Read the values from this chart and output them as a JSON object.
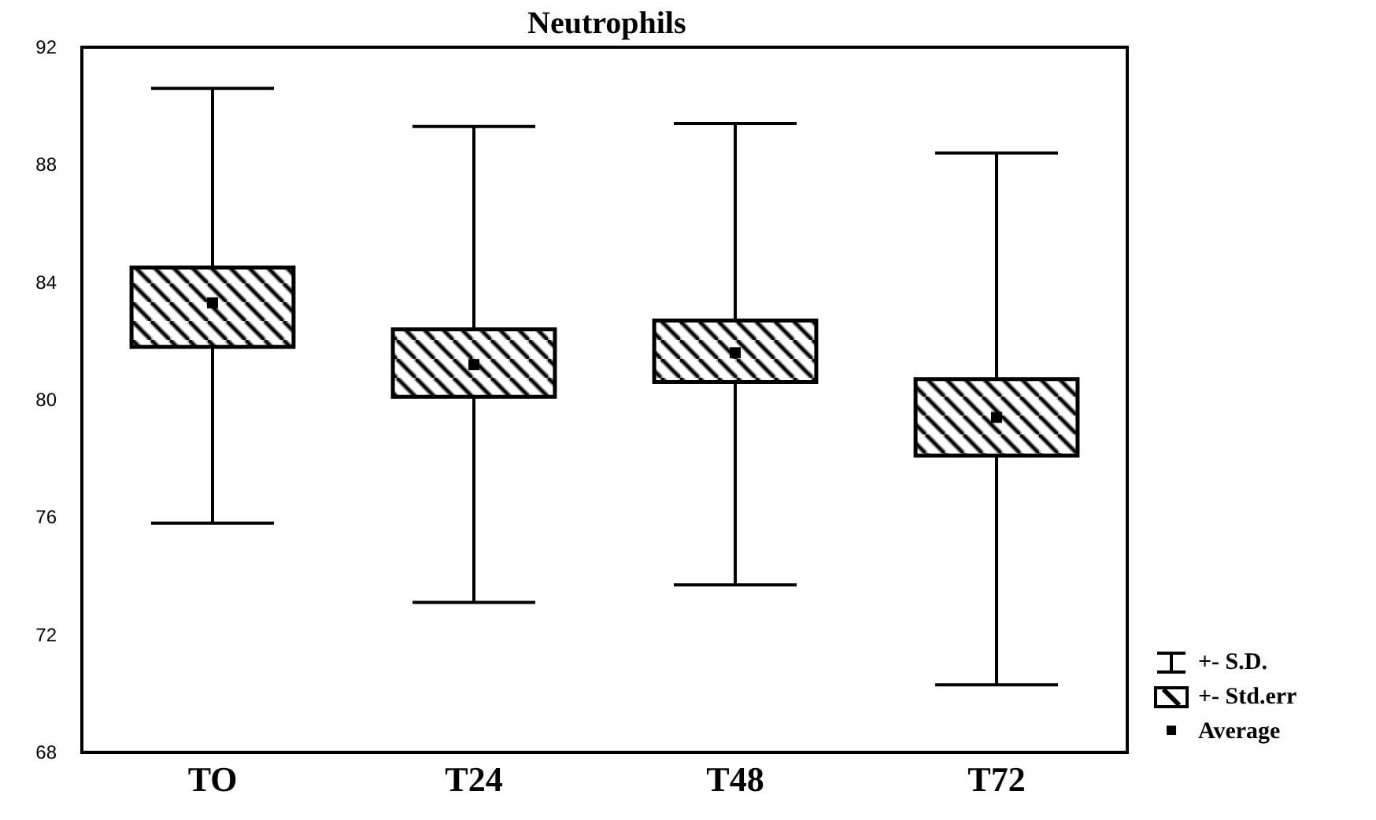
{
  "chart_data": {
    "type": "box",
    "title": "Neutrophils",
    "categories": [
      "TO",
      "T24",
      "T48",
      "T72"
    ],
    "color": "#000000",
    "boxes": [
      {
        "low": 75.8,
        "q1": 81.8,
        "median": 83.3,
        "q3": 84.5,
        "high": 90.6
      },
      {
        "low": 73.1,
        "q1": 80.1,
        "median": 81.2,
        "q3": 82.4,
        "high": 89.3
      },
      {
        "low": 73.7,
        "q1": 80.6,
        "median": 81.6,
        "q3": 82.7,
        "high": 89.4
      },
      {
        "low": 70.3,
        "q1": 78.1,
        "median": 79.4,
        "q3": 80.7,
        "high": 88.4
      }
    ],
    "annotations": [
      "+- S.D.",
      "+- Std.err",
      "Average"
    ],
    "marker": "square",
    "grid": false,
    "ylim": [
      68,
      92
    ],
    "yticks": [
      68,
      72,
      76,
      80,
      84,
      88,
      92
    ]
  }
}
